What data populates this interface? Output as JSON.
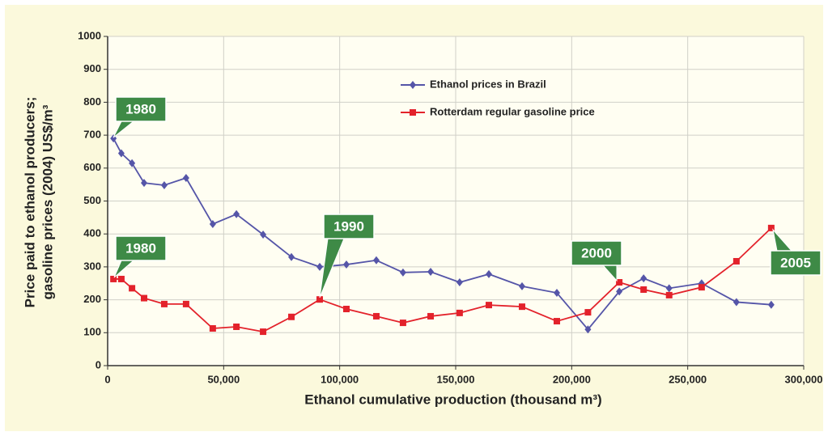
{
  "chart_data": {
    "type": "line",
    "ylabel": [
      "Price paid to ethanol producers;",
      "gasoline prices (2004) US$/m³"
    ],
    "xlabel": "Ethanol cumulative production (thousand m³)",
    "x": [
      2500,
      5900,
      10500,
      15700,
      24400,
      33800,
      45300,
      55500,
      67000,
      79200,
      91400,
      102900,
      115800,
      127300,
      139200,
      151700,
      164300,
      178600,
      193600,
      207000,
      220500,
      231000,
      242000,
      256000,
      271000,
      286000
    ],
    "series": [
      {
        "name": "Ethanol prices in Brazil",
        "color": "#5555a8",
        "marker": "diamond",
        "values": [
          690,
          645,
          615,
          555,
          548,
          570,
          430,
          460,
          398,
          330,
          300,
          307,
          320,
          283,
          285,
          253,
          278,
          241,
          221,
          110,
          225,
          265,
          235,
          250,
          193,
          185
        ]
      },
      {
        "name": "Rotterdam regular gasoline price",
        "color": "#e3222b",
        "marker": "square",
        "values": [
          263,
          263,
          235,
          205,
          187,
          187,
          113,
          118,
          103,
          148,
          201,
          172,
          150,
          130,
          150,
          160,
          184,
          179,
          135,
          162,
          253,
          231,
          214,
          238,
          317,
          418
        ]
      }
    ],
    "xlim": [
      0,
      300000
    ],
    "xticks": [
      0,
      {
        "value": 50000,
        "label": "50,000"
      },
      {
        "value": 100000,
        "label": "100,000"
      },
      {
        "value": 150000,
        "label": "150,000"
      },
      {
        "value": 200000,
        "label": "200,000"
      },
      {
        "value": 250000,
        "label": "250,000"
      },
      {
        "value": 300000,
        "label": "300,000"
      }
    ],
    "ylim": [
      0,
      1000
    ],
    "yticks": [
      0,
      100,
      200,
      300,
      400,
      500,
      600,
      700,
      800,
      900,
      1000
    ],
    "grid": true,
    "legend": "upper right",
    "annotations": [
      {
        "text": "1980"
      },
      {
        "text": "1980"
      },
      {
        "text": "1990"
      },
      {
        "text": "2000"
      },
      {
        "text": "2005"
      }
    ]
  }
}
